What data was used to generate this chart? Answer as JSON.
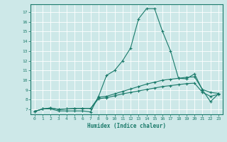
{
  "xlabel": "Humidex (Indice chaleur)",
  "xlim": [
    -0.5,
    23.5
  ],
  "ylim": [
    6.5,
    17.8
  ],
  "yticks": [
    7,
    8,
    9,
    10,
    11,
    12,
    13,
    14,
    15,
    16,
    17
  ],
  "xticks": [
    0,
    1,
    2,
    3,
    4,
    5,
    6,
    7,
    8,
    9,
    10,
    11,
    12,
    13,
    14,
    15,
    16,
    17,
    18,
    19,
    20,
    21,
    22,
    23
  ],
  "background_color": "#cde8e8",
  "grid_color": "#ffffff",
  "line_color": "#1a7a6a",
  "line1_x": [
    0,
    1,
    2,
    3,
    4,
    5,
    6,
    7,
    8,
    9,
    10,
    11,
    12,
    13,
    14,
    15,
    16,
    17,
    18,
    19,
    20,
    21,
    22,
    23
  ],
  "line1_y": [
    6.8,
    7.05,
    7.05,
    6.85,
    6.85,
    6.85,
    6.85,
    6.75,
    8.35,
    10.5,
    11.0,
    12.0,
    13.3,
    16.3,
    17.35,
    17.35,
    15.0,
    13.0,
    10.2,
    10.15,
    10.65,
    9.0,
    7.8,
    8.6
  ],
  "line2_x": [
    0,
    1,
    2,
    3,
    4,
    5,
    6,
    7,
    8,
    9,
    10,
    11,
    12,
    13,
    14,
    15,
    16,
    17,
    18,
    19,
    20,
    21,
    22,
    23
  ],
  "line2_y": [
    6.8,
    7.05,
    7.15,
    7.0,
    7.05,
    7.1,
    7.1,
    7.1,
    8.25,
    8.35,
    8.6,
    8.85,
    9.1,
    9.35,
    9.6,
    9.8,
    10.0,
    10.1,
    10.2,
    10.3,
    10.35,
    9.05,
    8.75,
    8.65
  ],
  "line3_x": [
    0,
    1,
    2,
    3,
    4,
    5,
    6,
    7,
    8,
    9,
    10,
    11,
    12,
    13,
    14,
    15,
    16,
    17,
    18,
    19,
    20,
    21,
    22,
    23
  ],
  "line3_y": [
    6.8,
    7.05,
    7.15,
    7.0,
    7.05,
    7.1,
    7.1,
    7.1,
    8.1,
    8.2,
    8.4,
    8.6,
    8.75,
    8.9,
    9.05,
    9.2,
    9.35,
    9.45,
    9.55,
    9.65,
    9.7,
    8.75,
    8.35,
    8.55
  ]
}
